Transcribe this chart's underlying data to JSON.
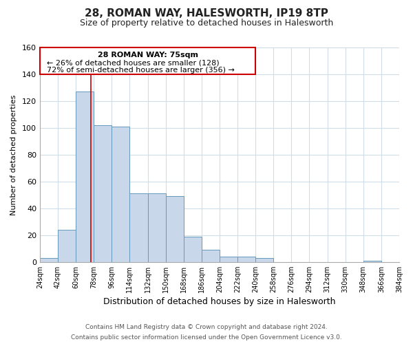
{
  "title": "28, ROMAN WAY, HALESWORTH, IP19 8TP",
  "subtitle": "Size of property relative to detached houses in Halesworth",
  "xlabel": "Distribution of detached houses by size in Halesworth",
  "ylabel": "Number of detached properties",
  "footnote1": "Contains HM Land Registry data © Crown copyright and database right 2024.",
  "footnote2": "Contains public sector information licensed under the Open Government Licence v3.0.",
  "bar_edges": [
    24,
    42,
    60,
    78,
    96,
    114,
    132,
    150,
    168,
    186,
    204,
    222,
    240,
    258,
    276,
    294,
    312,
    330,
    348,
    366,
    384
  ],
  "bar_heights": [
    3,
    24,
    127,
    102,
    101,
    51,
    51,
    49,
    19,
    9,
    4,
    4,
    3,
    0,
    0,
    0,
    0,
    0,
    1,
    0,
    1
  ],
  "bar_color": "#c8d8ea",
  "bar_edge_color": "#6699bb",
  "vline_x": 75,
  "vline_color": "#cc0000",
  "annotation_line1": "28 ROMAN WAY: 75sqm",
  "annotation_line2": "← 26% of detached houses are smaller (128)",
  "annotation_line3": "72% of semi-detached houses are larger (356) →",
  "ylim": [
    0,
    160
  ],
  "xlim": [
    24,
    384
  ],
  "tick_labels": [
    "24sqm",
    "42sqm",
    "60sqm",
    "78sqm",
    "96sqm",
    "114sqm",
    "132sqm",
    "150sqm",
    "168sqm",
    "186sqm",
    "204sqm",
    "222sqm",
    "240sqm",
    "258sqm",
    "276sqm",
    "294sqm",
    "312sqm",
    "330sqm",
    "348sqm",
    "366sqm",
    "384sqm"
  ],
  "background_color": "#ffffff",
  "grid_color": "#d0dce8",
  "title_fontsize": 11,
  "subtitle_fontsize": 9,
  "xlabel_fontsize": 9,
  "ylabel_fontsize": 8,
  "tick_fontsize": 7,
  "footnote_fontsize": 6.5,
  "yticks": [
    0,
    20,
    40,
    60,
    80,
    100,
    120,
    140,
    160
  ]
}
